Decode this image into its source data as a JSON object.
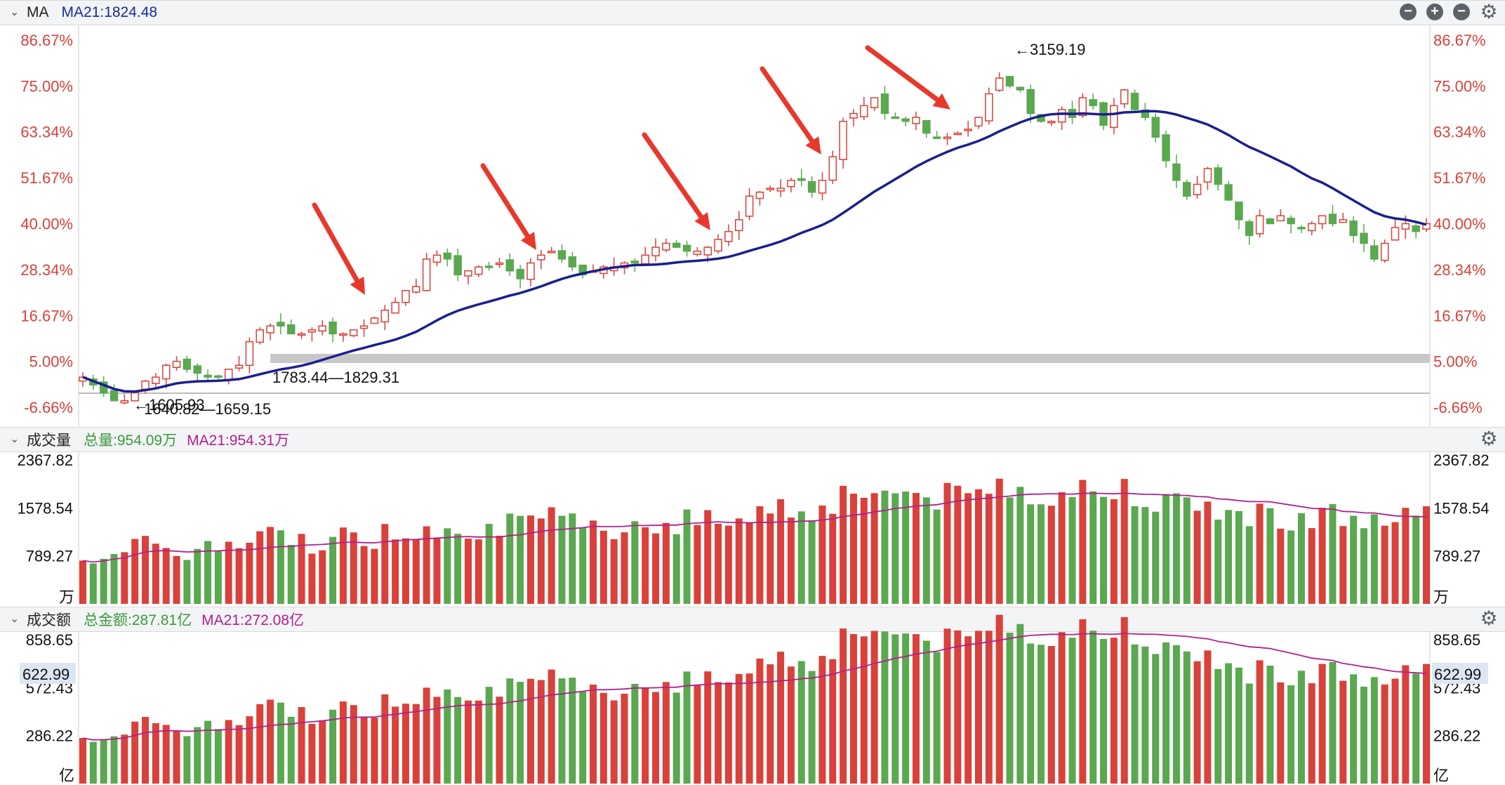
{
  "price_panel": {
    "label": "MA",
    "ma_label": "MA21:1824.48",
    "y_ticks": [
      "86.67%",
      "75.00%",
      "63.34%",
      "51.67%",
      "40.00%",
      "28.34%",
      "16.67%",
      "5.00%",
      "-6.66%"
    ],
    "annotations": {
      "high": "←3159.19",
      "range1": "1783.44—1829.31",
      "range2a": "←1605.93",
      "range2b": "1640.82—1659.15"
    }
  },
  "volume_panel": {
    "label": "成交量",
    "total_label": "总量:954.09万",
    "ma_label": "MA21:954.31万",
    "y_ticks": [
      "2367.82",
      "1578.54",
      "789.27"
    ],
    "unit": "万"
  },
  "amount_panel": {
    "label": "成交额",
    "total_label": "总金额:287.81亿",
    "ma_label": "MA21:272.08亿",
    "y_ticks": [
      "858.65",
      "572.43",
      "286.22"
    ],
    "highlight": "622.99",
    "unit": "亿"
  },
  "colors": {
    "up": "#d9413a",
    "down": "#5aa84f",
    "ma": "#1a1f8f",
    "vol_ma": "#b0208f",
    "arrow": "#e8382b",
    "axis_red": "#d9413a"
  },
  "chart_data": {
    "type": "candlestick",
    "price_range_pct": [
      -6.66,
      86.67
    ],
    "close_pct": [
      1,
      -1,
      -3,
      -5,
      -5,
      -3,
      0,
      1,
      4,
      5,
      3,
      2,
      1,
      1,
      3,
      4,
      10,
      13,
      14,
      14,
      12,
      12,
      13,
      14,
      12,
      12,
      13,
      14,
      16,
      18,
      20,
      23,
      24,
      31,
      32,
      31,
      27,
      28,
      29,
      29,
      30,
      28,
      26,
      30,
      32,
      33,
      31,
      29,
      27,
      28,
      29,
      29,
      30,
      30,
      32,
      34,
      35,
      34,
      33,
      33,
      34,
      36,
      38,
      41,
      47,
      48,
      49,
      49,
      51,
      51,
      48,
      51,
      57,
      66,
      68,
      70,
      72,
      68,
      67,
      66,
      67,
      63,
      62,
      62,
      63,
      64,
      67,
      73,
      77,
      75,
      74,
      68,
      66,
      66,
      69,
      67,
      72,
      70,
      65,
      70,
      74,
      69,
      67,
      62,
      56,
      51,
      47,
      50,
      54,
      50,
      46,
      41,
      37,
      42,
      40,
      42,
      40,
      39,
      40,
      42,
      40,
      41,
      37,
      35,
      31,
      35,
      39,
      40,
      38,
      40
    ]
  }
}
